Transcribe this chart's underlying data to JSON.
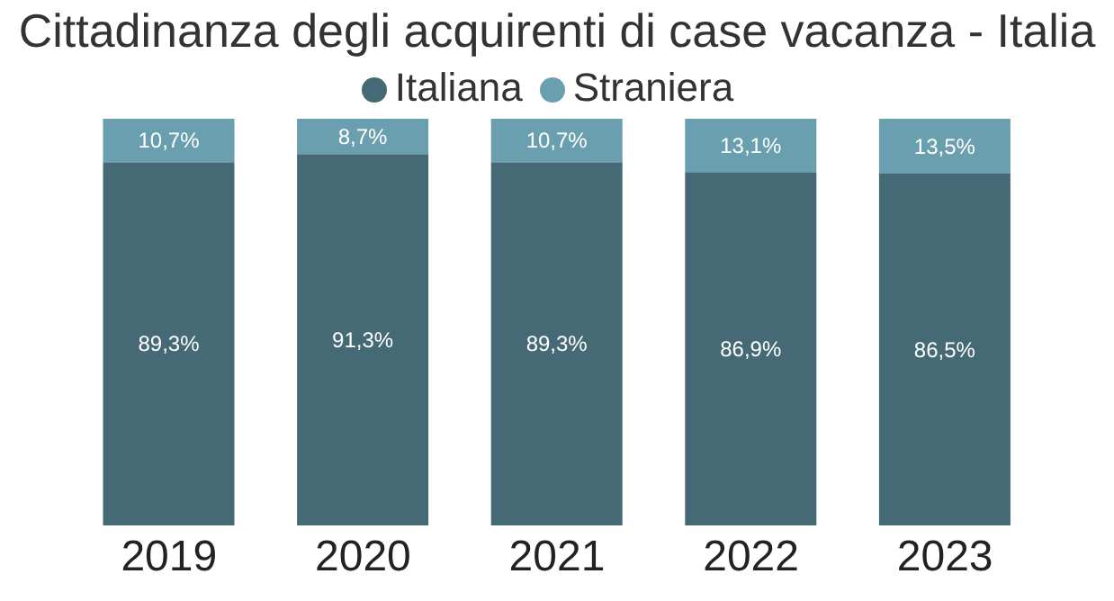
{
  "chart_data": {
    "type": "bar",
    "title": "Cittadinanza degli acquirenti di case vacanza - Italia",
    "stacked": true,
    "legend": "top",
    "categories": [
      "2019",
      "2020",
      "2021",
      "2022",
      "2023"
    ],
    "series": [
      {
        "name": "Italiana",
        "color": "#456a75",
        "values": [
          89.3,
          91.3,
          89.3,
          86.9,
          86.5
        ],
        "value_labels": [
          "89,3%",
          "91,3%",
          "89,3%",
          "86,9%",
          "86,5%"
        ]
      },
      {
        "name": "Straniera",
        "color": "#6a9fb0",
        "values": [
          10.7,
          8.7,
          10.7,
          13.1,
          13.5
        ],
        "value_labels": [
          "10,7%",
          "8,7%",
          "10,7%",
          "13,1%",
          "13,5%"
        ]
      }
    ]
  }
}
